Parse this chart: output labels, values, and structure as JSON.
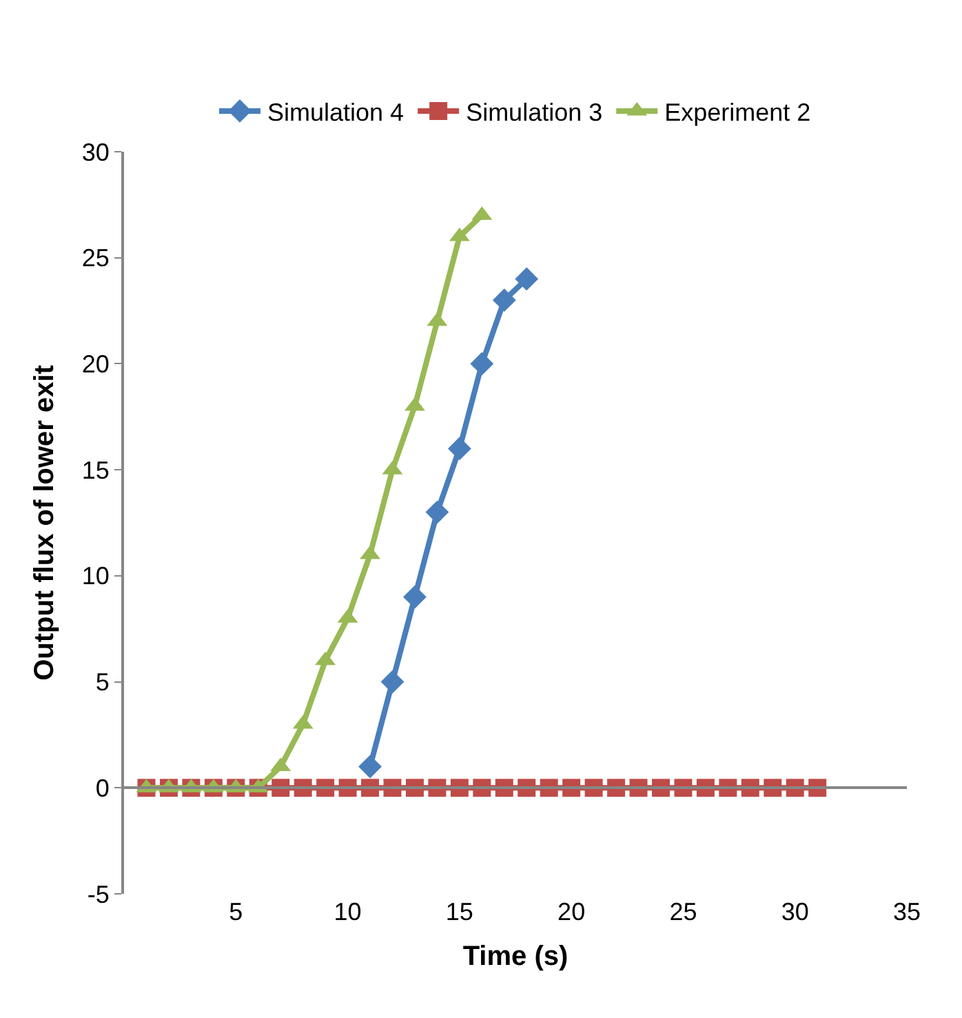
{
  "chart_data": {
    "type": "line",
    "xlabel": "Time (s)",
    "ylabel": "Output flux of lower exit",
    "xlim": [
      0,
      35
    ],
    "xticks": [
      5,
      10,
      15,
      20,
      25,
      30,
      35
    ],
    "ylim": [
      -5,
      30
    ],
    "yticks": [
      -5,
      0,
      5,
      10,
      15,
      20,
      25,
      30
    ],
    "legend": "top",
    "series": [
      {
        "name": "Simulation 4",
        "color": "#4a7ebb",
        "marker": "diamond",
        "x": [
          11,
          12,
          13,
          14,
          15,
          16,
          17,
          18
        ],
        "values": [
          1,
          5,
          9,
          13,
          16,
          20,
          23,
          24
        ]
      },
      {
        "name": "Simulation 3",
        "color": "#be4b48",
        "marker": "square",
        "x": [
          1,
          2,
          3,
          4,
          5,
          6,
          7,
          8,
          9,
          10,
          11,
          12,
          13,
          14,
          15,
          16,
          17,
          18,
          19,
          20,
          21,
          22,
          23,
          24,
          25,
          26,
          27,
          28,
          29,
          30,
          31
        ],
        "values": [
          0,
          0,
          0,
          0,
          0,
          0,
          0,
          0,
          0,
          0,
          0,
          0,
          0,
          0,
          0,
          0,
          0,
          0,
          0,
          0,
          0,
          0,
          0,
          0,
          0,
          0,
          0,
          0,
          0,
          0,
          0
        ]
      },
      {
        "name": "Experiment 2",
        "color": "#98b954",
        "marker": "triangle",
        "x": [
          1,
          2,
          3,
          4,
          5,
          6,
          7,
          8,
          9,
          10,
          11,
          12,
          13,
          14,
          15,
          16
        ],
        "values": [
          0,
          0,
          0,
          0,
          0,
          0,
          1,
          3,
          6,
          8,
          11,
          15,
          18,
          22,
          26,
          27
        ]
      }
    ]
  }
}
